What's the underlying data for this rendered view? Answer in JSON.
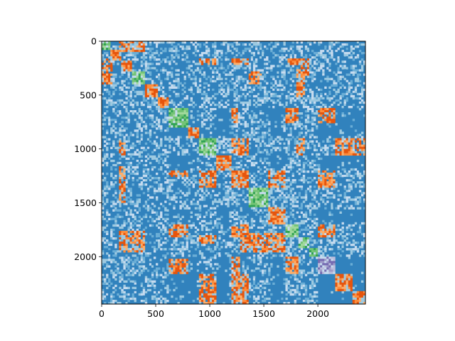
{
  "figure": {
    "background": "#ffffff"
  },
  "chart_data": {
    "type": "heatmap",
    "title": "",
    "xlabel": "",
    "ylabel": "",
    "n": 2440,
    "xlim": [
      0,
      2440
    ],
    "ylim": [
      2440,
      0
    ],
    "y_axis_inverted": true,
    "grid": false,
    "legend": "none",
    "xticks": [
      0,
      500,
      1000,
      1500,
      2000
    ],
    "yticks": [
      0,
      500,
      1000,
      1500,
      2000
    ],
    "xtick_labels": [
      "0",
      "500",
      "1000",
      "1500",
      "2000"
    ],
    "ytick_labels": [
      "0",
      "500",
      "1000",
      "1500",
      "2000"
    ],
    "colors": {
      "background_cell": "#3182bd",
      "light_1": "#6baed6",
      "light_2": "#9ecae1",
      "light_3": "#c6dbef",
      "orange": "#e6550d",
      "orange_light": "#fd8d3c",
      "orange_pale": "#fdae6b",
      "green": "#31a354",
      "green_light": "#74c476",
      "green_pale": "#a1d99b",
      "purple": "#756bb1",
      "purple_light": "#9e9ac8",
      "purple_pale": "#bcbddc"
    },
    "diagonal_clusters": [
      {
        "start": 0,
        "end": 70,
        "palette": "green"
      },
      {
        "start": 70,
        "end": 170,
        "palette": "orange"
      },
      {
        "start": 170,
        "end": 280,
        "palette": "orange"
      },
      {
        "start": 280,
        "end": 400,
        "palette": "green"
      },
      {
        "start": 400,
        "end": 520,
        "palette": "orange"
      },
      {
        "start": 520,
        "end": 620,
        "palette": "orange"
      },
      {
        "start": 620,
        "end": 800,
        "palette": "green"
      },
      {
        "start": 800,
        "end": 900,
        "palette": "orange"
      },
      {
        "start": 900,
        "end": 1050,
        "palette": "green"
      },
      {
        "start": 1050,
        "end": 1200,
        "palette": "orange"
      },
      {
        "start": 1200,
        "end": 1350,
        "palette": "orange"
      },
      {
        "start": 1350,
        "end": 1530,
        "palette": "green"
      },
      {
        "start": 1530,
        "end": 1700,
        "palette": "orange"
      },
      {
        "start": 1700,
        "end": 1820,
        "palette": "green"
      },
      {
        "start": 1820,
        "end": 1920,
        "palette": "green"
      },
      {
        "start": 1920,
        "end": 2000,
        "palette": "green"
      },
      {
        "start": 2000,
        "end": 2160,
        "palette": "purple"
      },
      {
        "start": 2160,
        "end": 2320,
        "palette": "orange"
      },
      {
        "start": 2320,
        "end": 2440,
        "palette": "orange"
      }
    ],
    "off_diagonal_blocks": [
      {
        "rows": [
          0,
          100
        ],
        "cols": [
          150,
          400
        ],
        "palette": "orange"
      },
      {
        "rows": [
          150,
          400
        ],
        "cols": [
          0,
          100
        ],
        "palette": "orange"
      },
      {
        "rows": [
          150,
          220
        ],
        "cols": [
          900,
          1050
        ],
        "palette": "orange"
      },
      {
        "rows": [
          150,
          220
        ],
        "cols": [
          1200,
          1350
        ],
        "palette": "orange"
      },
      {
        "rows": [
          150,
          220
        ],
        "cols": [
          1700,
          1920
        ],
        "palette": "orange"
      },
      {
        "rows": [
          200,
          320
        ],
        "cols": [
          1830,
          1920
        ],
        "palette": "orange"
      },
      {
        "rows": [
          270,
          400
        ],
        "cols": [
          1360,
          1480
        ],
        "palette": "orange"
      },
      {
        "rows": [
          260,
          520
        ],
        "cols": [
          1800,
          1880
        ],
        "palette": "orange"
      },
      {
        "rows": [
          620,
          760
        ],
        "cols": [
          1200,
          1260
        ],
        "palette": "orange"
      },
      {
        "rows": [
          620,
          760
        ],
        "cols": [
          1700,
          1820
        ],
        "palette": "orange"
      },
      {
        "rows": [
          620,
          760
        ],
        "cols": [
          2000,
          2160
        ],
        "palette": "orange"
      },
      {
        "rows": [
          890,
          1050
        ],
        "cols": [
          150,
          220
        ],
        "palette": "orange"
      },
      {
        "rows": [
          890,
          1050
        ],
        "cols": [
          1200,
          1350
        ],
        "palette": "orange"
      },
      {
        "rows": [
          890,
          1050
        ],
        "cols": [
          1800,
          1880
        ],
        "palette": "orange"
      },
      {
        "rows": [
          890,
          1050
        ],
        "cols": [
          2160,
          2440
        ],
        "palette": "orange"
      },
      {
        "rows": [
          1200,
          1350
        ],
        "cols": [
          900,
          1050
        ],
        "palette": "orange"
      },
      {
        "rows": [
          1150,
          1500
        ],
        "cols": [
          150,
          220
        ],
        "palette": "orange"
      },
      {
        "rows": [
          1200,
          1260
        ],
        "cols": [
          620,
          800
        ],
        "palette": "orange"
      },
      {
        "rows": [
          1200,
          1350
        ],
        "cols": [
          1530,
          1700
        ],
        "palette": "orange"
      },
      {
        "rows": [
          1200,
          1350
        ],
        "cols": [
          2000,
          2160
        ],
        "palette": "orange"
      },
      {
        "rows": [
          1700,
          1820
        ],
        "cols": [
          620,
          800
        ],
        "palette": "orange"
      },
      {
        "rows": [
          1700,
          1820
        ],
        "cols": [
          1200,
          1350
        ],
        "palette": "orange"
      },
      {
        "rows": [
          1700,
          1820
        ],
        "cols": [
          2000,
          2160
        ],
        "palette": "orange"
      },
      {
        "rows": [
          1750,
          1950
        ],
        "cols": [
          150,
          400
        ],
        "palette": "orange"
      },
      {
        "rows": [
          1800,
          1880
        ],
        "cols": [
          900,
          1050
        ],
        "palette": "orange"
      },
      {
        "rows": [
          1780,
          1950
        ],
        "cols": [
          1280,
          1530
        ],
        "palette": "orange"
      },
      {
        "rows": [
          1780,
          1950
        ],
        "cols": [
          1530,
          1700
        ],
        "palette": "orange"
      },
      {
        "rows": [
          2020,
          2160
        ],
        "cols": [
          620,
          800
        ],
        "palette": "orange"
      },
      {
        "rows": [
          2000,
          2160
        ],
        "cols": [
          1700,
          1820
        ],
        "palette": "orange"
      },
      {
        "rows": [
          2160,
          2440
        ],
        "cols": [
          900,
          1050
        ],
        "palette": "orange"
      },
      {
        "rows": [
          2160,
          2440
        ],
        "cols": [
          1280,
          1350
        ],
        "palette": "orange"
      },
      {
        "rows": [
          2000,
          2440
        ],
        "cols": [
          1200,
          1280
        ],
        "palette": "orange"
      }
    ],
    "light_bands": [
      {
        "start": 0,
        "end": 620
      },
      {
        "start": 870,
        "end": 1060
      },
      {
        "start": 1180,
        "end": 1560
      },
      {
        "start": 1680,
        "end": 2000
      }
    ],
    "cell_resolution": 20
  }
}
